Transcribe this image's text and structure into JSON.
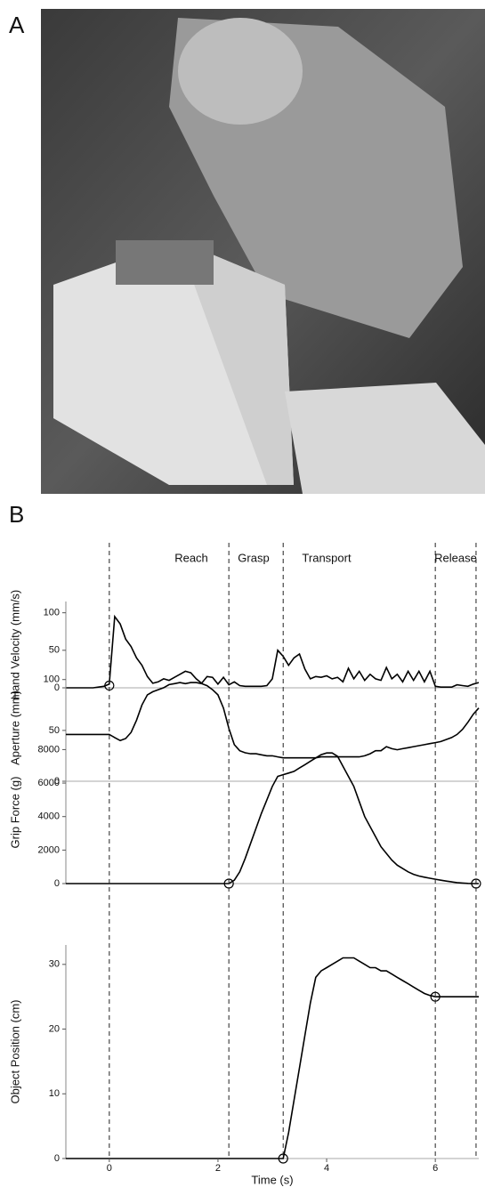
{
  "panel_labels": [
    "A",
    "B"
  ],
  "chart_data": [
    {
      "type": "line",
      "y_label": "Hand Velocity (mm/s)",
      "color": "#000000",
      "xlim": [
        -0.8,
        6.8
      ],
      "ylim": [
        0,
        115
      ],
      "yticks": [
        0,
        50,
        100
      ],
      "phase_labels": [
        "Reach",
        "Grasp",
        "Transport",
        "Release"
      ],
      "vlines": [
        0,
        2.2,
        3.2,
        6.0,
        6.75
      ],
      "x": [
        -0.8,
        -0.7,
        -0.6,
        -0.5,
        -0.4,
        -0.3,
        -0.2,
        -0.1,
        0,
        0.1,
        0.2,
        0.3,
        0.4,
        0.5,
        0.6,
        0.7,
        0.8,
        0.9,
        1,
        1.1,
        1.2,
        1.3,
        1.4,
        1.5,
        1.6,
        1.7,
        1.8,
        1.9,
        2,
        2.1,
        2.2,
        2.3,
        2.4,
        2.5,
        2.6,
        2.7,
        2.8,
        2.9,
        3,
        3.1,
        3.2,
        3.3,
        3.4,
        3.5,
        3.6,
        3.7,
        3.8,
        3.9,
        4,
        4.1,
        4.2,
        4.3,
        4.4,
        4.5,
        4.6,
        4.7,
        4.8,
        4.9,
        5,
        5.1,
        5.2,
        5.3,
        5.4,
        5.5,
        5.6,
        5.7,
        5.8,
        5.9,
        6,
        6.1,
        6.2,
        6.3,
        6.4,
        6.5,
        6.6,
        6.7,
        6.8
      ],
      "values": [
        0,
        0,
        0,
        0,
        0,
        0,
        1,
        2,
        5,
        95,
        85,
        65,
        55,
        40,
        30,
        15,
        6,
        8,
        12,
        10,
        14,
        18,
        22,
        20,
        12,
        6,
        15,
        14,
        5,
        14,
        4,
        8,
        3,
        2,
        2,
        2,
        2,
        3,
        12,
        50,
        42,
        30,
        40,
        45,
        25,
        12,
        15,
        14,
        16,
        12,
        14,
        8,
        26,
        12,
        22,
        10,
        18,
        12,
        10,
        27,
        12,
        18,
        8,
        22,
        10,
        22,
        8,
        22,
        2,
        1,
        1,
        1,
        4,
        3,
        2,
        5,
        7
      ],
      "markers": {
        "x": [
          0
        ],
        "y": [
          3
        ]
      }
    },
    {
      "type": "line",
      "y_label": "Aperture (mm)",
      "color": "#000000",
      "xlim": [
        -0.8,
        6.8
      ],
      "ylim": [
        0,
        105
      ],
      "yticks": [
        0,
        50,
        100
      ],
      "x": [
        -0.8,
        -0.7,
        -0.6,
        -0.5,
        -0.4,
        -0.3,
        -0.2,
        -0.1,
        0,
        0.1,
        0.2,
        0.3,
        0.4,
        0.5,
        0.6,
        0.7,
        0.8,
        0.9,
        1,
        1.1,
        1.2,
        1.3,
        1.4,
        1.5,
        1.6,
        1.7,
        1.8,
        1.9,
        2,
        2.1,
        2.2,
        2.3,
        2.4,
        2.5,
        2.6,
        2.7,
        2.8,
        2.9,
        3,
        3.1,
        3.2,
        3.3,
        3.4,
        3.5,
        3.6,
        3.7,
        3.8,
        3.9,
        4,
        4.1,
        4.2,
        4.3,
        4.4,
        4.5,
        4.6,
        4.7,
        4.8,
        4.9,
        5,
        5.1,
        5.2,
        5.3,
        5.4,
        5.5,
        5.6,
        5.7,
        5.8,
        5.9,
        6,
        6.1,
        6.2,
        6.3,
        6.4,
        6.5,
        6.6,
        6.7,
        6.8
      ],
      "values": [
        46,
        46,
        46,
        46,
        46,
        46,
        46,
        46,
        46,
        43,
        40,
        42,
        48,
        60,
        75,
        85,
        88,
        90,
        92,
        95,
        96,
        97,
        96,
        97,
        97,
        96,
        94,
        90,
        85,
        72,
        52,
        36,
        30,
        28,
        27,
        27,
        26,
        25,
        25,
        24,
        23,
        23,
        23,
        23,
        23,
        23,
        23,
        24,
        24,
        24,
        24,
        24,
        24,
        24,
        24,
        25,
        27,
        30,
        30,
        34,
        32,
        31,
        32,
        33,
        34,
        35,
        36,
        37,
        38,
        39,
        41,
        43,
        46,
        51,
        58,
        66,
        72
      ]
    },
    {
      "type": "line",
      "y_label": "Grip Force (g)",
      "color": "#000000",
      "xlim": [
        -0.8,
        6.8
      ],
      "ylim": [
        0,
        8500
      ],
      "yticks": [
        0,
        2000,
        4000,
        6000,
        8000
      ],
      "x": [
        -0.8,
        -0.7,
        -0.6,
        -0.5,
        -0.4,
        -0.3,
        -0.2,
        -0.1,
        0,
        0.1,
        0.2,
        0.3,
        0.4,
        0.5,
        0.6,
        0.7,
        0.8,
        0.9,
        1,
        1.1,
        1.2,
        1.3,
        1.4,
        1.5,
        1.6,
        1.7,
        1.8,
        1.9,
        2,
        2.1,
        2.2,
        2.3,
        2.4,
        2.5,
        2.6,
        2.7,
        2.8,
        2.9,
        3,
        3.1,
        3.2,
        3.3,
        3.4,
        3.5,
        3.6,
        3.7,
        3.8,
        3.9,
        4,
        4.1,
        4.2,
        4.3,
        4.4,
        4.5,
        4.6,
        4.7,
        4.8,
        4.9,
        5,
        5.1,
        5.2,
        5.3,
        5.4,
        5.5,
        5.6,
        5.7,
        5.8,
        5.9,
        6,
        6.1,
        6.2,
        6.3,
        6.4,
        6.5,
        6.6,
        6.7,
        6.8
      ],
      "values": [
        0,
        0,
        0,
        0,
        0,
        0,
        0,
        0,
        0,
        0,
        0,
        0,
        0,
        0,
        0,
        0,
        0,
        0,
        0,
        0,
        0,
        0,
        0,
        0,
        0,
        0,
        0,
        0,
        0,
        0,
        0,
        200,
        700,
        1500,
        2400,
        3300,
        4200,
        5000,
        5800,
        6400,
        6500,
        6600,
        6700,
        6900,
        7100,
        7300,
        7500,
        7700,
        7800,
        7800,
        7600,
        7000,
        6400,
        5800,
        4900,
        4000,
        3400,
        2800,
        2200,
        1800,
        1400,
        1100,
        900,
        700,
        550,
        450,
        380,
        320,
        260,
        200,
        150,
        100,
        60,
        30,
        10,
        0,
        0
      ],
      "markers": {
        "x": [
          2.2,
          6.75
        ],
        "y": [
          0,
          0
        ]
      }
    },
    {
      "type": "line",
      "y_label": "Object Position (cm)",
      "x_label": "Time (s)",
      "color": "#000000",
      "xlim": [
        -0.8,
        6.8
      ],
      "ylim": [
        0,
        33
      ],
      "yticks": [
        0,
        10,
        20,
        30
      ],
      "xticks": [
        0,
        2,
        4,
        6
      ],
      "x": [
        -0.8,
        -0.7,
        -0.6,
        -0.5,
        -0.4,
        -0.3,
        -0.2,
        -0.1,
        0,
        0.1,
        0.2,
        0.3,
        0.4,
        0.5,
        0.6,
        0.7,
        0.8,
        0.9,
        1,
        1.1,
        1.2,
        1.3,
        1.4,
        1.5,
        1.6,
        1.7,
        1.8,
        1.9,
        2,
        2.1,
        2.2,
        2.3,
        2.4,
        2.5,
        2.6,
        2.7,
        2.8,
        2.9,
        3,
        3.1,
        3.2,
        3.3,
        3.4,
        3.5,
        3.6,
        3.7,
        3.8,
        3.9,
        4,
        4.1,
        4.2,
        4.3,
        4.4,
        4.5,
        4.6,
        4.7,
        4.8,
        4.9,
        5,
        5.1,
        5.2,
        5.3,
        5.4,
        5.5,
        5.6,
        5.7,
        5.8,
        5.9,
        6,
        6.1,
        6.2,
        6.3,
        6.4,
        6.5,
        6.6,
        6.7,
        6.8
      ],
      "values": [
        0,
        0,
        0,
        0,
        0,
        0,
        0,
        0,
        0,
        0,
        0,
        0,
        0,
        0,
        0,
        0,
        0,
        0,
        0,
        0,
        0,
        0,
        0,
        0,
        0,
        0,
        0,
        0,
        0,
        0,
        0,
        0,
        0,
        0,
        0,
        0,
        0,
        0,
        0,
        0,
        0,
        4,
        9,
        14,
        19,
        24,
        28,
        29,
        29.5,
        30,
        30.5,
        31,
        31,
        31,
        30.5,
        30,
        29.5,
        29.5,
        29,
        29,
        28.5,
        28,
        27.5,
        27,
        26.5,
        26,
        25.5,
        25.2,
        25,
        25,
        25,
        25,
        25,
        25,
        25,
        25,
        25
      ],
      "markers": {
        "x": [
          3.2,
          6.0
        ],
        "y": [
          0,
          25
        ]
      }
    }
  ]
}
